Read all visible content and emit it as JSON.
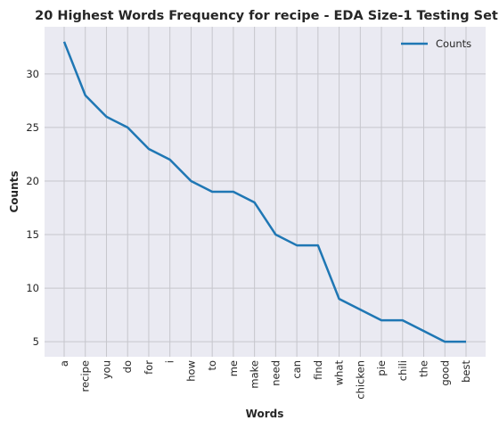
{
  "chart_data": {
    "type": "line",
    "title": "20 Highest Words Frequency for recipe - EDA Size-1 Testing Set",
    "xlabel": "Words",
    "ylabel": "Counts",
    "categories": [
      "a",
      "recipe",
      "you",
      "do",
      "for",
      "i",
      "how",
      "to",
      "me",
      "make",
      "need",
      "can",
      "find",
      "what",
      "chicken",
      "pie",
      "chili",
      "the",
      "good",
      "best"
    ],
    "series": [
      {
        "name": "Counts",
        "values": [
          33,
          28,
          26,
          25,
          23,
          22,
          20,
          19,
          19,
          18,
          15,
          14,
          14,
          9,
          8,
          7,
          7,
          6,
          5,
          5
        ],
        "color": "#1f77b4"
      }
    ],
    "yticks": [
      5,
      10,
      15,
      20,
      25,
      30
    ],
    "ylim": [
      3.6,
      34.4
    ],
    "grid": true,
    "legend": "top-right",
    "background": "#eaeaf2",
    "grid_color": "#c6c6cc"
  }
}
